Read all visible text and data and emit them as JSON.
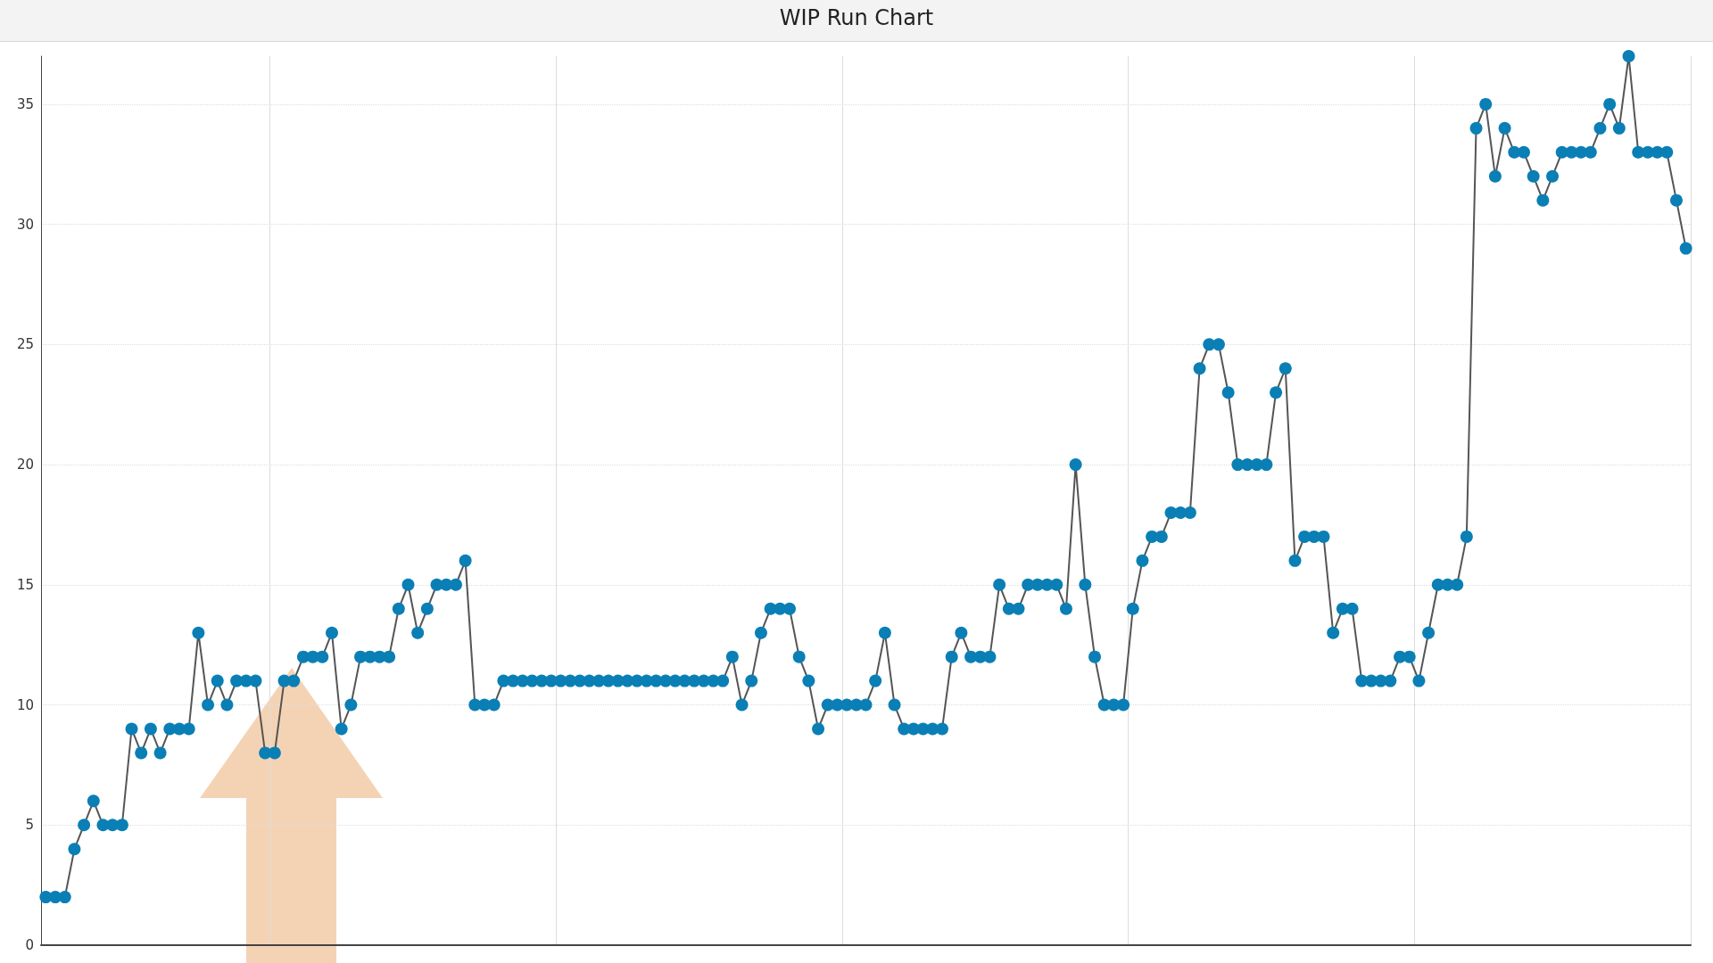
{
  "chart_data": {
    "type": "line",
    "title": "WIP Run Chart",
    "categories": [
      null,
      null,
      null,
      null,
      null,
      null,
      null,
      null,
      null,
      null,
      null,
      null,
      null,
      null,
      null,
      null,
      null,
      null,
      null,
      null,
      null,
      null,
      null,
      null,
      null,
      null,
      null,
      null,
      null,
      null,
      null,
      null,
      null,
      null,
      null,
      null,
      null,
      null,
      null,
      null,
      null,
      null,
      null,
      null,
      null,
      null,
      null,
      null,
      null,
      null,
      null,
      null,
      null,
      null,
      null,
      null,
      null,
      null,
      null,
      null,
      null,
      null,
      null,
      null,
      null,
      null,
      null,
      null,
      null,
      null,
      null,
      null,
      null,
      null,
      null,
      null,
      null,
      null,
      null,
      null,
      null,
      null,
      null,
      null,
      null,
      null,
      null,
      null,
      null,
      null,
      null,
      null,
      null,
      null,
      null,
      null,
      null,
      null,
      null,
      null,
      null,
      null,
      null,
      null,
      null,
      null,
      null,
      null,
      null,
      null,
      null,
      null,
      null,
      null,
      null,
      null,
      null,
      null,
      null,
      null,
      null,
      null,
      null,
      null,
      null,
      null,
      null,
      null,
      null,
      null,
      null,
      null,
      null,
      null,
      null,
      null,
      null,
      null,
      null,
      null,
      null,
      null,
      null,
      null,
      null,
      null,
      null,
      null,
      null,
      null,
      null,
      null,
      null,
      null,
      null,
      null,
      null,
      null,
      null,
      null,
      null,
      null,
      null,
      null,
      null,
      null,
      null,
      null,
      null,
      null,
      null,
      null,
      null
    ],
    "series": [
      {
        "color": "#0a7fb5",
        "values": [
          2,
          2,
          2,
          4,
          5,
          6,
          5,
          5,
          5,
          9,
          8,
          9,
          8,
          9,
          9,
          9,
          13,
          10,
          11,
          10,
          11,
          11,
          11,
          8,
          8,
          11,
          11,
          12,
          12,
          12,
          13,
          9,
          10,
          12,
          12,
          12,
          12,
          14,
          15,
          13,
          14,
          15,
          15,
          15,
          16,
          10,
          10,
          10,
          11,
          11,
          11,
          11,
          11,
          11,
          11,
          11,
          11,
          11,
          11,
          11,
          11,
          11,
          11,
          11,
          11,
          11,
          11,
          11,
          11,
          11,
          11,
          11,
          12,
          10,
          11,
          13,
          14,
          14,
          14,
          12,
          11,
          9,
          10,
          10,
          10,
          10,
          10,
          11,
          13,
          10,
          9,
          9,
          9,
          9,
          9,
          12,
          13,
          12,
          12,
          12,
          15,
          14,
          14,
          15,
          15,
          15,
          15,
          14,
          20,
          15,
          12,
          10,
          10,
          10,
          14,
          16,
          17,
          17,
          18,
          18,
          18,
          24,
          25,
          25,
          23,
          20,
          20,
          20,
          20,
          23,
          24,
          16,
          17,
          17,
          17,
          13,
          14,
          14,
          11,
          11,
          11,
          11,
          12,
          12,
          11,
          13,
          15,
          15,
          15,
          17,
          34,
          35,
          32,
          34,
          33,
          33,
          32,
          31,
          32,
          33,
          33,
          33,
          33,
          34,
          35,
          34,
          37,
          33,
          33,
          33,
          33,
          31,
          29
        ]
      }
    ],
    "ylim": [
      0,
      37
    ],
    "yticks": [
      0,
      5,
      10,
      15,
      20,
      25,
      30,
      35
    ],
    "grid": true,
    "marker": "circle",
    "line_style": "solid"
  }
}
